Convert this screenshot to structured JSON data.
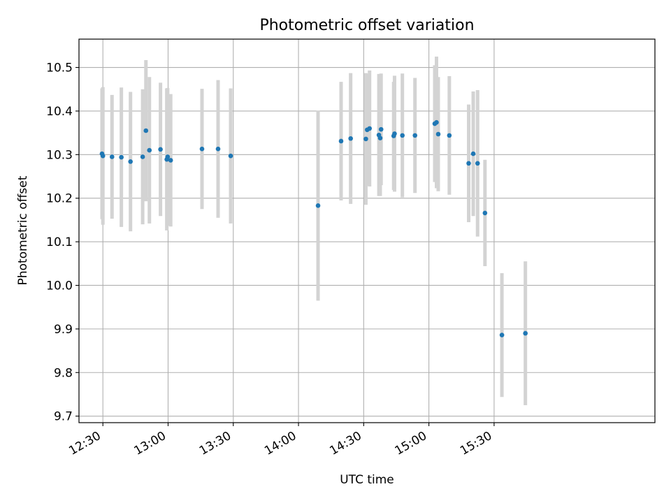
{
  "chart_data": {
    "type": "scatter",
    "title": "Photometric offset variation",
    "xlabel": "UTC time",
    "ylabel": "Photometric offset",
    "xlim": [
      739,
      1004
    ],
    "ylim": [
      9.685,
      10.565
    ],
    "grid": true,
    "x_ticks": [
      {
        "value": 750,
        "label": "12:30"
      },
      {
        "value": 780,
        "label": "13:00"
      },
      {
        "value": 810,
        "label": "13:30"
      },
      {
        "value": 840,
        "label": "14:00"
      },
      {
        "value": 870,
        "label": "14:30"
      },
      {
        "value": 900,
        "label": "15:00"
      },
      {
        "value": 930,
        "label": "15:30"
      }
    ],
    "y_ticks": [
      {
        "value": 9.7,
        "label": "9.7"
      },
      {
        "value": 9.8,
        "label": "9.8"
      },
      {
        "value": 9.9,
        "label": "9.9"
      },
      {
        "value": 10.0,
        "label": "10.0"
      },
      {
        "value": 10.1,
        "label": "10.1"
      },
      {
        "value": 10.2,
        "label": "10.2"
      },
      {
        "value": 10.3,
        "label": "10.3"
      },
      {
        "value": 10.4,
        "label": "10.4"
      },
      {
        "value": 10.5,
        "label": "10.5"
      }
    ],
    "point_color": "#1f77b4",
    "errorbar_color": "#d3d3d3",
    "points": [
      {
        "x": 749.6,
        "y": 10.302,
        "err": 0.15
      },
      {
        "x": 750.0,
        "y": 10.297,
        "err": 0.158
      },
      {
        "x": 754.2,
        "y": 10.295,
        "err": 0.142
      },
      {
        "x": 758.5,
        "y": 10.294,
        "err": 0.16
      },
      {
        "x": 762.7,
        "y": 10.284,
        "err": 0.16
      },
      {
        "x": 768.3,
        "y": 10.295,
        "err": 0.155
      },
      {
        "x": 769.8,
        "y": 10.355,
        "err": 0.162
      },
      {
        "x": 771.4,
        "y": 10.31,
        "err": 0.168
      },
      {
        "x": 776.5,
        "y": 10.312,
        "err": 0.153
      },
      {
        "x": 779.4,
        "y": 10.289,
        "err": 0.163
      },
      {
        "x": 779.8,
        "y": 10.295,
        "err": 0.158
      },
      {
        "x": 781.2,
        "y": 10.287,
        "err": 0.152
      },
      {
        "x": 795.6,
        "y": 10.313,
        "err": 0.138
      },
      {
        "x": 803.0,
        "y": 10.313,
        "err": 0.158
      },
      {
        "x": 808.8,
        "y": 10.297,
        "err": 0.155
      },
      {
        "x": 849.0,
        "y": 10.183,
        "err": 0.218
      },
      {
        "x": 859.6,
        "y": 10.331,
        "err": 0.136
      },
      {
        "x": 864.0,
        "y": 10.337,
        "err": 0.15
      },
      {
        "x": 871.0,
        "y": 10.336,
        "err": 0.151
      },
      {
        "x": 871.6,
        "y": 10.357,
        "err": 0.128
      },
      {
        "x": 872.7,
        "y": 10.36,
        "err": 0.133
      },
      {
        "x": 877.0,
        "y": 10.345,
        "err": 0.14
      },
      {
        "x": 877.6,
        "y": 10.338,
        "err": 0.133
      },
      {
        "x": 878.0,
        "y": 10.358,
        "err": 0.128
      },
      {
        "x": 883.8,
        "y": 10.343,
        "err": 0.124
      },
      {
        "x": 884.2,
        "y": 10.348,
        "err": 0.133
      },
      {
        "x": 887.8,
        "y": 10.344,
        "err": 0.142
      },
      {
        "x": 893.6,
        "y": 10.344,
        "err": 0.132
      },
      {
        "x": 902.7,
        "y": 10.371,
        "err": 0.134
      },
      {
        "x": 903.5,
        "y": 10.374,
        "err": 0.151
      },
      {
        "x": 904.3,
        "y": 10.347,
        "err": 0.131
      },
      {
        "x": 909.4,
        "y": 10.344,
        "err": 0.136
      },
      {
        "x": 918.3,
        "y": 10.28,
        "err": 0.135
      },
      {
        "x": 920.4,
        "y": 10.302,
        "err": 0.143
      },
      {
        "x": 922.4,
        "y": 10.28,
        "err": 0.168
      },
      {
        "x": 925.8,
        "y": 10.166,
        "err": 0.122
      },
      {
        "x": 933.6,
        "y": 9.886,
        "err": 0.142
      },
      {
        "x": 944.4,
        "y": 9.89,
        "err": 0.165
      }
    ]
  }
}
